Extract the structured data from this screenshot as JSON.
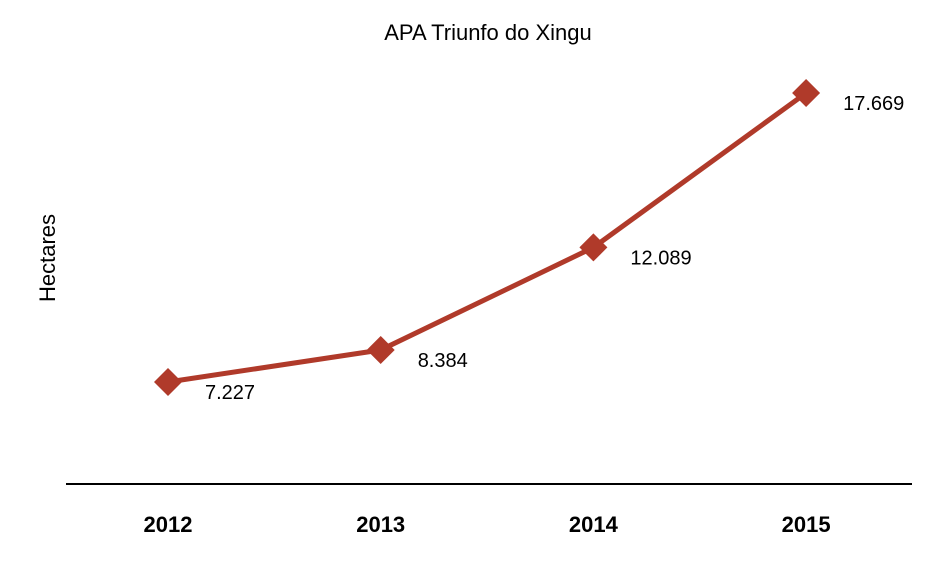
{
  "chart_data": {
    "type": "line",
    "title": "APA Triunfo do Xingu",
    "xlabel": "",
    "ylabel": "Hectares",
    "categories": [
      "2012",
      "2013",
      "2014",
      "2015"
    ],
    "series": [
      {
        "values": [
          7227,
          8384,
          12089,
          17669
        ],
        "value_labels": [
          "7.227",
          "8.384",
          "12.089",
          "17.669"
        ],
        "color": "#b03a2a",
        "marker": "diamond"
      }
    ],
    "ylim": [
      3500,
      19500
    ],
    "grid": false,
    "legend": "none"
  }
}
